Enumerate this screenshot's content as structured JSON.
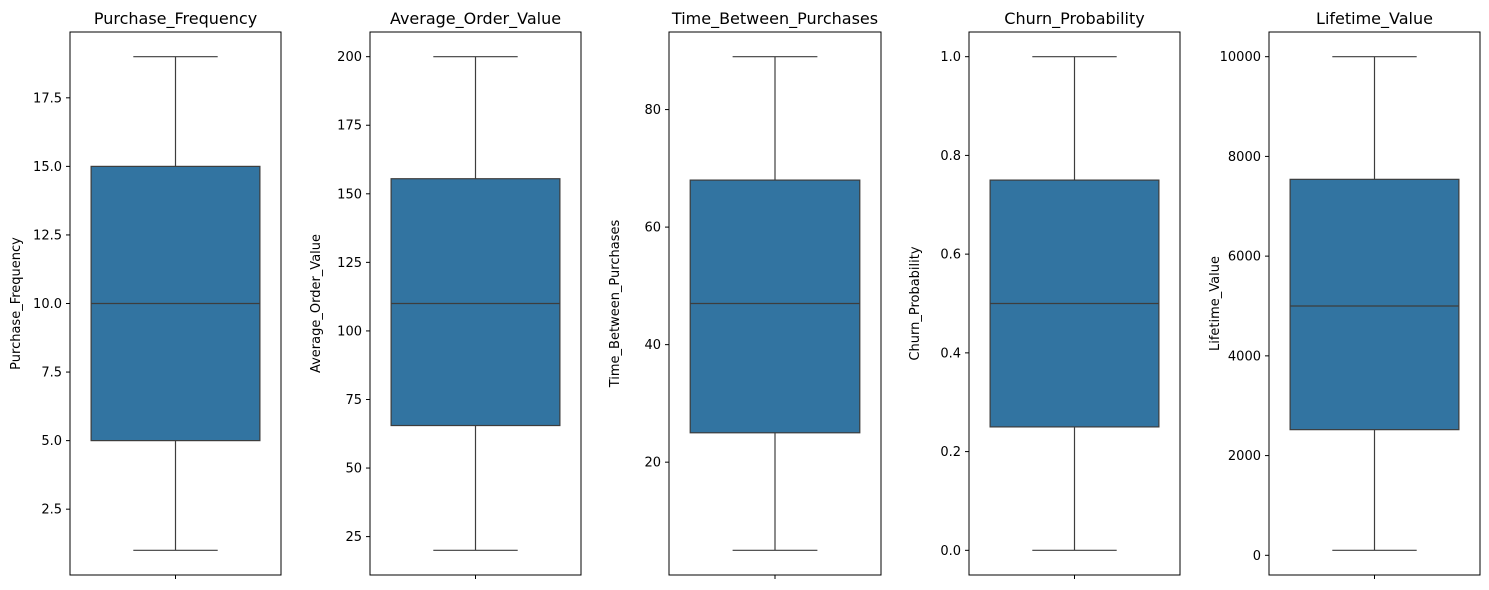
{
  "chart_data": [
    {
      "type": "box",
      "title": "Purchase_Frequency",
      "ylabel": "Purchase_Frequency",
      "ylim": [
        0.1,
        19.9
      ],
      "yticks": [
        "2.5",
        "5.0",
        "7.5",
        "10.0",
        "12.5",
        "15.0",
        "17.5"
      ],
      "box": {
        "min": 1,
        "q1": 5,
        "median": 10,
        "q3": 15,
        "max": 19
      }
    },
    {
      "type": "box",
      "title": "Average_Order_Value",
      "ylabel": "Average_Order_Value",
      "ylim": [
        11,
        209
      ],
      "yticks": [
        "25",
        "50",
        "75",
        "100",
        "125",
        "150",
        "175",
        "200"
      ],
      "box": {
        "min": 20,
        "q1": 65.5,
        "median": 110,
        "q3": 155.5,
        "max": 200
      }
    },
    {
      "type": "box",
      "title": "Time_Between_Purchases",
      "ylabel": "Time_Between_Purchases",
      "ylim": [
        0.8,
        93.2
      ],
      "yticks": [
        "20",
        "40",
        "60",
        "80"
      ],
      "box": {
        "min": 5,
        "q1": 25,
        "median": 47,
        "q3": 68,
        "max": 89
      }
    },
    {
      "type": "box",
      "title": "Churn_Probability",
      "ylabel": "Churn_Probability",
      "ylim": [
        -0.05,
        1.05
      ],
      "yticks": [
        "0.0",
        "0.2",
        "0.4",
        "0.6",
        "0.8",
        "1.0"
      ],
      "box": {
        "min": 0.0,
        "q1": 0.25,
        "median": 0.5,
        "q3": 0.75,
        "max": 1.0
      }
    },
    {
      "type": "box",
      "title": "Lifetime_Value",
      "ylabel": "Lifetime_Value",
      "ylim": [
        -395,
        10495
      ],
      "yticks": [
        "0",
        "2000",
        "4000",
        "6000",
        "8000",
        "10000"
      ],
      "box": {
        "min": 100,
        "q1": 2520,
        "median": 5000,
        "q3": 7540,
        "max": 10000
      }
    }
  ],
  "colors": {
    "box_fill": "#3274a1",
    "line": "#3d3d3d",
    "axes": "#000000"
  }
}
